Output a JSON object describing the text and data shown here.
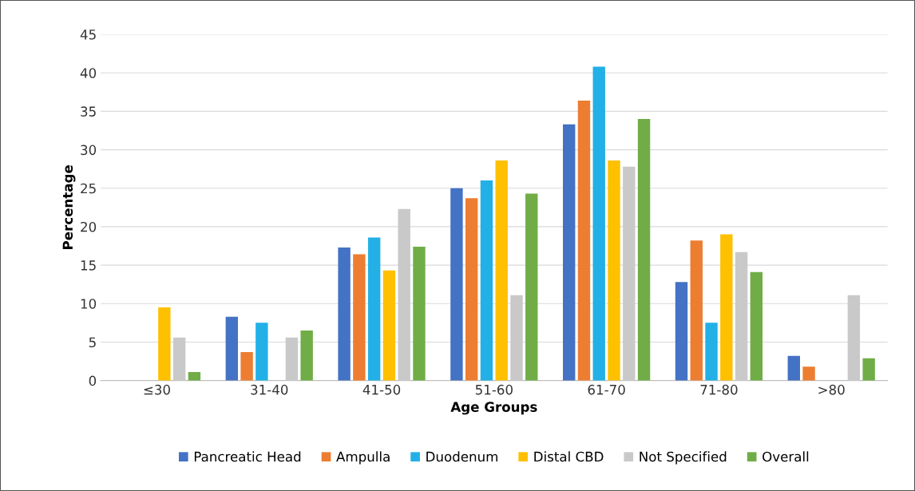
{
  "chart_data": {
    "type": "bar",
    "xlabel": "Age Groups",
    "ylabel": "Percentage",
    "categories": [
      "≤30",
      "31-40",
      "41-50",
      "51-60",
      "61-70",
      "71-80",
      ">80"
    ],
    "series": [
      {
        "name": "Pancreatic Head",
        "color": "#4472c4",
        "values": [
          0,
          8.3,
          17.3,
          25.0,
          33.3,
          12.8,
          3.2
        ]
      },
      {
        "name": "Ampulla",
        "color": "#ed7d31",
        "values": [
          0,
          3.7,
          16.4,
          23.7,
          36.4,
          18.2,
          1.8
        ]
      },
      {
        "name": "Duodenum",
        "color": "#22b0e6",
        "values": [
          0,
          7.5,
          18.6,
          26.0,
          40.8,
          7.5,
          0
        ]
      },
      {
        "name": "Distal CBD",
        "color": "#ffc000",
        "values": [
          9.5,
          0,
          14.3,
          28.6,
          28.6,
          19.0,
          0
        ]
      },
      {
        "name": "Not Specified",
        "color": "#c9c9c9",
        "values": [
          5.6,
          5.6,
          22.3,
          11.1,
          27.8,
          16.7,
          11.1
        ]
      },
      {
        "name": "Overall",
        "color": "#70ad47",
        "values": [
          1.1,
          6.5,
          17.4,
          24.3,
          34.0,
          14.1,
          2.9
        ]
      }
    ],
    "ylim": [
      0,
      45
    ],
    "yticks": [
      0,
      5,
      10,
      15,
      20,
      25,
      30,
      35,
      40,
      45
    ],
    "grid": "y",
    "legend": "bottom"
  }
}
